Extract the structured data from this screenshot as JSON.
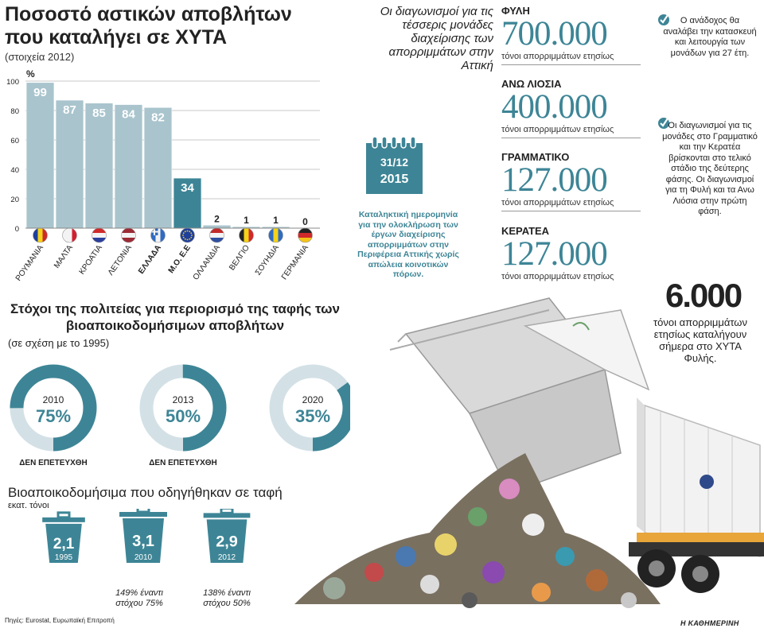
{
  "title": "Ποσοστό αστικών αποβλήτων που καταλήγει σε ΧΥΤΑ",
  "subtitle": "(στοιχεία 2012)",
  "chart_data": [
    {
      "type": "bar",
      "title": "Ποσοστό αστικών αποβλήτων που καταλήγει σε ΧΥΤΑ",
      "ylabel": "%",
      "ylim": [
        0,
        100
      ],
      "yticks": [
        0,
        20,
        40,
        60,
        80,
        100
      ],
      "grid": true,
      "categories": [
        "ΡΟΥΜΑΝΙΑ",
        "ΜΑΛΤΑ",
        "ΚΡΟΑΤΙΑ",
        "ΛΕΤΟΝΙΑ",
        "ΕΛΛΑΔΑ",
        "Μ.Ο. Ε.Ε",
        "ΟΛΛΑΝΔΙΑ",
        "ΒΕΛΓΙΟ",
        "ΣΟΥΗΔΙΑ",
        "ΓΕΡΜΑΝΙΑ"
      ],
      "values": [
        99,
        87,
        85,
        84,
        82,
        34,
        2,
        1,
        1,
        0
      ],
      "value_labels": [
        "99",
        "87",
        "85",
        "84",
        "82",
        "34",
        "2",
        "1",
        "1",
        "0"
      ],
      "bold_categories": [
        "ΕΛΛΑΔΑ",
        "Μ.Ο. Ε.Ε"
      ]
    },
    {
      "type": "pie",
      "title": "Στόχοι της πολιτείας για περιορισμό της ταφής των βιοαποικοδομήσιμων αποβλήτων",
      "subtitle": "(σε σχέση με το 1995)",
      "targets": [
        {
          "year": "2010",
          "value": 75,
          "label": "75%",
          "status": "ΔΕΝ ΕΠΕΤΕΥΧΘΗ"
        },
        {
          "year": "2013",
          "value": 50,
          "label": "50%",
          "status": "ΔΕΝ ΕΠΕΤΕΥΧΘΗ"
        },
        {
          "year": "2020",
          "value": 35,
          "label": "35%",
          "status": ""
        }
      ]
    },
    {
      "type": "bar",
      "title": "Βιοαποικοδομήσιμα που οδηγήθηκαν σε ταφή",
      "ylabel": "εκατ. τόνοι",
      "categories": [
        "1995",
        "2010",
        "2012"
      ],
      "values": [
        2.1,
        3.1,
        2.9
      ],
      "value_labels": [
        "2,1",
        "3,1",
        "2,9"
      ],
      "notes": [
        "",
        "149% έναντι στόχου 75%",
        "138% έναντι στόχου 50%"
      ]
    }
  ],
  "tenders": {
    "title": "Οι διαγωνισμοί για τις τέσσερις μονάδες διαχείρισης των απορριμμάτων στην Αττική",
    "deadline_date": "31/12",
    "deadline_year": "2015",
    "deadline_text": "Καταληκτική ημερομηνία για την ολοκλήρωση των έργων διαχείρισης απορριμμάτων στην Περιφέρεια Αττικής χωρίς απώλεια κοινοτικών πόρων.",
    "sites": [
      {
        "name": "ΦΥΛΗ",
        "value": "700.000",
        "unit": "τόνοι απορριμμάτων ετησίως"
      },
      {
        "name": "ΑΝΩ ΛΙΟΣΙΑ",
        "value": "400.000",
        "unit": "τόνοι απορριμμάτων ετησίως"
      },
      {
        "name": "ΓΡΑΜΜΑΤΙΚΟ",
        "value": "127.000",
        "unit": "τόνοι απορριμμάτων ετησίως"
      },
      {
        "name": "ΚΕΡΑΤΕΑ",
        "value": "127.000",
        "unit": "τόνοι απορριμμάτων ετησίως"
      }
    ],
    "bullets": [
      "Ο ανάδοχος θα αναλάβει την κατασκευή και λειτουργία των μονάδων για 27 έτη.",
      "Οι διαγωνισμοί για τις μονάδες στο Γραμματικό και την Κερατέα βρίσκονται στο τελικό στάδιο της δεύτερης φάσης. Οι διαγωνισμοί για τη Φυλή και τα Ανω Λιόσια στην πρώτη φάση."
    ],
    "big_value": "6.000",
    "big_text": "τόνοι απορριμμάτων ετησίως καταλήγουν σήμερα στο ΧΥΤΑ Φυλής."
  },
  "source": "Πηγές: Eurostat, Ευρωπαϊκή Επιτροπή",
  "brand": "Η ΚΑΘΗΜΕΡΙΝΗ",
  "colors": {
    "bar": "#a9c4cd",
    "bar_highlight": "#3d8596",
    "ring_light": "#d3e1e6",
    "accent": "#3d8596"
  }
}
